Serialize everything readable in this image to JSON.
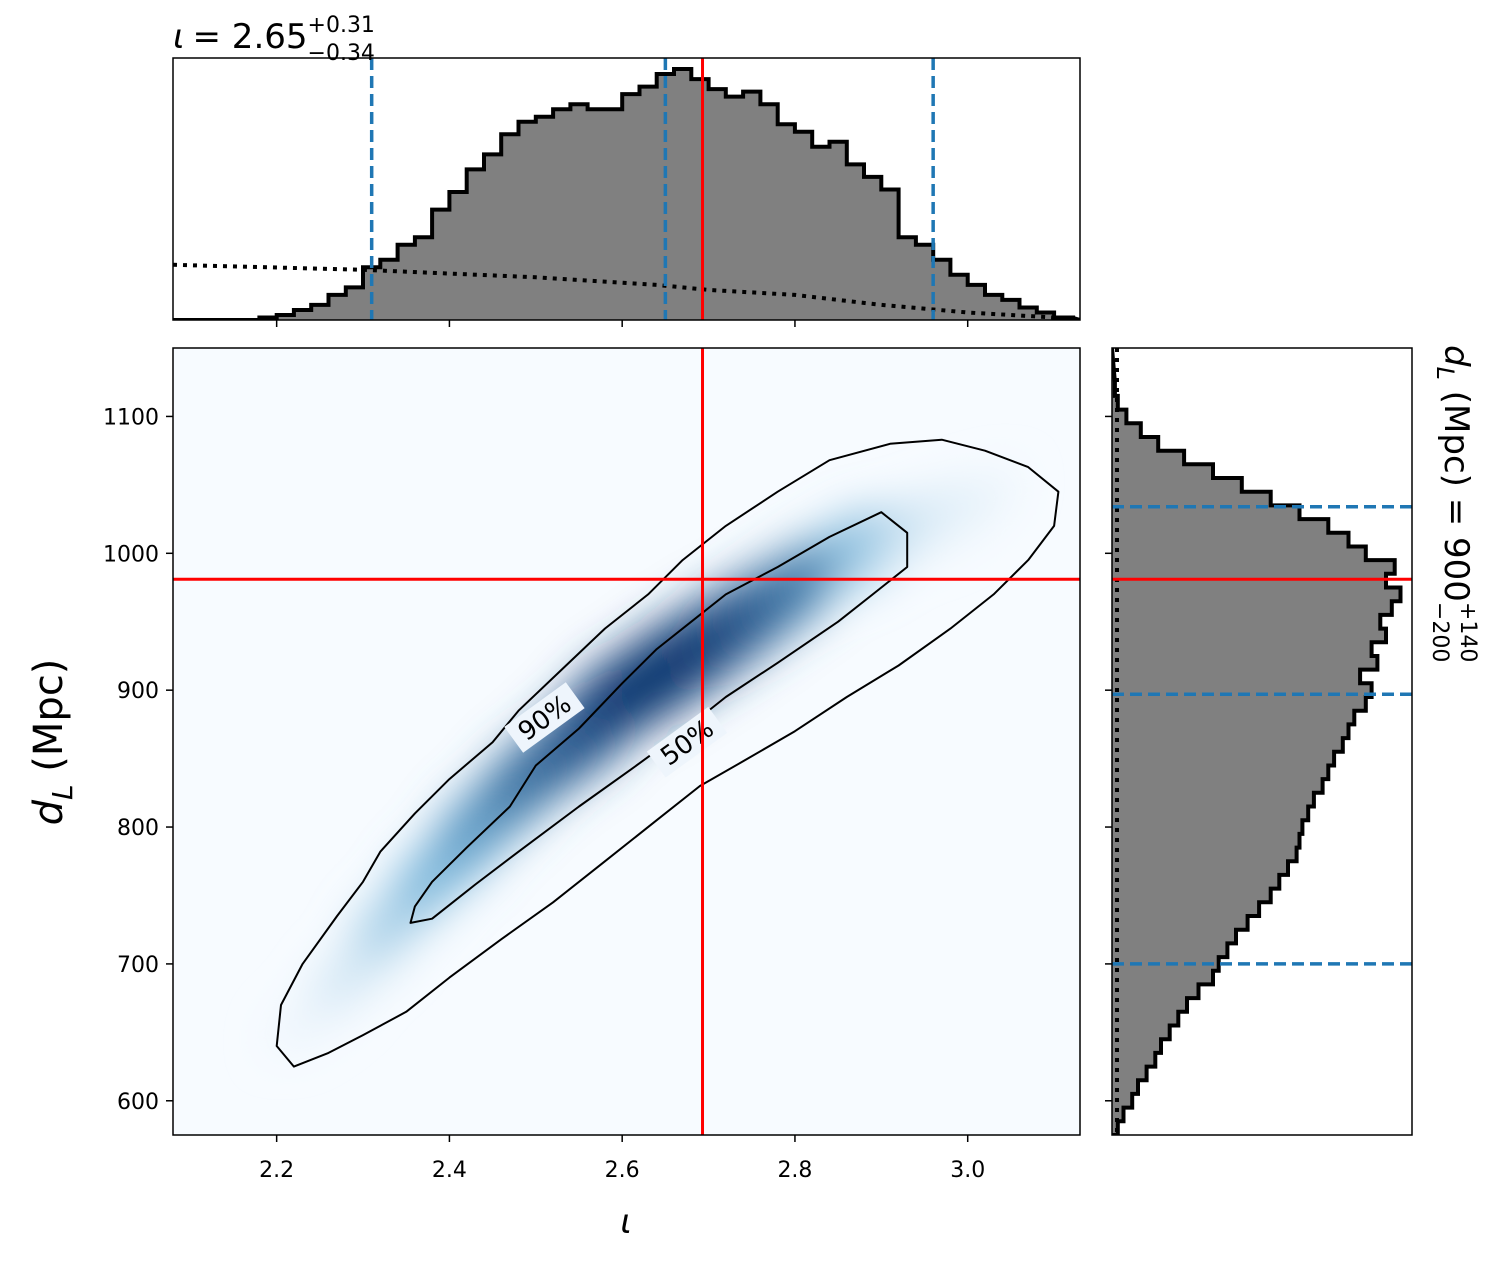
{
  "chart_data": [
    {
      "panel": "top-marginal",
      "type": "histogram",
      "title": {
        "symbol": "ι",
        "eq": "= 2.65",
        "sup": "+0.31",
        "sub": "−0.34"
      },
      "xlim": [
        2.08,
        3.13
      ],
      "bins": [
        [
          2.08,
          0.0
        ],
        [
          2.1,
          0.0
        ],
        [
          2.12,
          0.0
        ],
        [
          2.14,
          0.0
        ],
        [
          2.16,
          0.0
        ],
        [
          2.18,
          0.01
        ],
        [
          2.2,
          0.02
        ],
        [
          2.22,
          0.04
        ],
        [
          2.24,
          0.06
        ],
        [
          2.26,
          0.1
        ],
        [
          2.28,
          0.13
        ],
        [
          2.3,
          0.21
        ],
        [
          2.32,
          0.24
        ],
        [
          2.34,
          0.3
        ],
        [
          2.36,
          0.33
        ],
        [
          2.38,
          0.44
        ],
        [
          2.4,
          0.51
        ],
        [
          2.42,
          0.6
        ],
        [
          2.44,
          0.66
        ],
        [
          2.46,
          0.74
        ],
        [
          2.48,
          0.79
        ],
        [
          2.5,
          0.81
        ],
        [
          2.52,
          0.84
        ],
        [
          2.54,
          0.86
        ],
        [
          2.56,
          0.84
        ],
        [
          2.58,
          0.84
        ],
        [
          2.6,
          0.9
        ],
        [
          2.62,
          0.93
        ],
        [
          2.64,
          0.98
        ],
        [
          2.66,
          1.0
        ],
        [
          2.68,
          0.96
        ],
        [
          2.7,
          0.92
        ],
        [
          2.72,
          0.89
        ],
        [
          2.74,
          0.91
        ],
        [
          2.76,
          0.86
        ],
        [
          2.78,
          0.78
        ],
        [
          2.8,
          0.75
        ],
        [
          2.82,
          0.69
        ],
        [
          2.84,
          0.71
        ],
        [
          2.86,
          0.62
        ],
        [
          2.88,
          0.57
        ],
        [
          2.9,
          0.52
        ],
        [
          2.92,
          0.33
        ],
        [
          2.94,
          0.3
        ],
        [
          2.96,
          0.24
        ],
        [
          2.98,
          0.18
        ],
        [
          3.0,
          0.14
        ],
        [
          3.02,
          0.1
        ],
        [
          3.04,
          0.08
        ],
        [
          3.06,
          0.05
        ],
        [
          3.08,
          0.03
        ],
        [
          3.1,
          0.01
        ]
      ],
      "prior_dotted": [
        [
          2.08,
          0.22
        ],
        [
          2.3,
          0.2
        ],
        [
          2.5,
          0.17
        ],
        [
          2.64,
          0.14
        ],
        [
          2.7,
          0.12
        ],
        [
          2.8,
          0.1
        ],
        [
          2.9,
          0.06
        ],
        [
          3.0,
          0.03
        ],
        [
          3.1,
          0.01
        ],
        [
          3.13,
          0.01
        ]
      ],
      "quantile_lines": [
        2.31,
        2.65,
        2.96
      ],
      "true_value": 2.693,
      "ymax": 1.02
    },
    {
      "panel": "joint-density",
      "type": "heatmap",
      "xlabel": "ι",
      "ylabel": "d",
      "ylabel_sub": "L",
      "ylabel_unit": " (Mpc)",
      "xlim": [
        2.08,
        3.13
      ],
      "ylim": [
        575,
        1150
      ],
      "xticks": [
        "2.2",
        "2.4",
        "2.6",
        "2.8",
        "3.0"
      ],
      "xtick_values": [
        2.2,
        2.4,
        2.6,
        2.8,
        3.0
      ],
      "yticks": [
        "600",
        "700",
        "800",
        "900",
        "1000",
        "1100"
      ],
      "ytick_values": [
        600,
        700,
        800,
        900,
        1000,
        1100
      ],
      "contour_labels": [
        "90%",
        "50%"
      ],
      "true_point": [
        2.693,
        981
      ],
      "contour_90": [
        [
          2.22,
          625
        ],
        [
          2.2,
          640
        ],
        [
          2.205,
          670
        ],
        [
          2.23,
          700
        ],
        [
          2.27,
          735
        ],
        [
          2.3,
          760
        ],
        [
          2.32,
          782
        ],
        [
          2.36,
          810
        ],
        [
          2.4,
          835
        ],
        [
          2.45,
          862
        ],
        [
          2.48,
          885
        ],
        [
          2.53,
          915
        ],
        [
          2.58,
          945
        ],
        [
          2.63,
          970
        ],
        [
          2.67,
          995
        ],
        [
          2.72,
          1020
        ],
        [
          2.78,
          1045
        ],
        [
          2.84,
          1068
        ],
        [
          2.91,
          1080
        ],
        [
          2.97,
          1083
        ],
        [
          3.02,
          1075
        ],
        [
          3.07,
          1063
        ],
        [
          3.105,
          1045
        ],
        [
          3.1,
          1020
        ],
        [
          3.07,
          995
        ],
        [
          3.03,
          970
        ],
        [
          2.98,
          945
        ],
        [
          2.92,
          918
        ],
        [
          2.86,
          895
        ],
        [
          2.8,
          870
        ],
        [
          2.74,
          848
        ],
        [
          2.69,
          830
        ],
        [
          2.64,
          805
        ],
        [
          2.58,
          775
        ],
        [
          2.52,
          745
        ],
        [
          2.46,
          718
        ],
        [
          2.4,
          690
        ],
        [
          2.35,
          665
        ],
        [
          2.3,
          648
        ],
        [
          2.26,
          635
        ],
        [
          2.22,
          625
        ]
      ],
      "contour_50": [
        [
          2.355,
          730
        ],
        [
          2.36,
          742
        ],
        [
          2.38,
          760
        ],
        [
          2.42,
          785
        ],
        [
          2.47,
          815
        ],
        [
          2.5,
          845
        ],
        [
          2.55,
          872
        ],
        [
          2.6,
          905
        ],
        [
          2.64,
          930
        ],
        [
          2.68,
          950
        ],
        [
          2.72,
          970
        ],
        [
          2.78,
          990
        ],
        [
          2.84,
          1012
        ],
        [
          2.9,
          1030
        ],
        [
          2.93,
          1015
        ],
        [
          2.93,
          990
        ],
        [
          2.89,
          970
        ],
        [
          2.85,
          950
        ],
        [
          2.78,
          920
        ],
        [
          2.72,
          895
        ],
        [
          2.66,
          865
        ],
        [
          2.61,
          842
        ],
        [
          2.55,
          815
        ],
        [
          2.48,
          782
        ],
        [
          2.43,
          758
        ],
        [
          2.38,
          733
        ],
        [
          2.355,
          730
        ]
      ],
      "density_ridge": [
        [
          2.25,
          665,
          0.05
        ],
        [
          2.3,
          700,
          0.15
        ],
        [
          2.35,
          740,
          0.3
        ],
        [
          2.4,
          775,
          0.45
        ],
        [
          2.45,
          810,
          0.58
        ],
        [
          2.5,
          840,
          0.68
        ],
        [
          2.55,
          865,
          0.78
        ],
        [
          2.6,
          895,
          0.88
        ],
        [
          2.65,
          915,
          0.95
        ],
        [
          2.7,
          935,
          0.9
        ],
        [
          2.75,
          955,
          0.8
        ],
        [
          2.8,
          975,
          0.68
        ],
        [
          2.85,
          995,
          0.5
        ],
        [
          2.9,
          1005,
          0.32
        ],
        [
          2.95,
          1020,
          0.15
        ],
        [
          3.0,
          1030,
          0.06
        ]
      ]
    },
    {
      "panel": "right-marginal",
      "type": "histogram",
      "title": {
        "symbol": "d",
        "sub_symbol": "L",
        "eq": " (Mpc) = 900",
        "sup": "+140",
        "sub": "−200"
      },
      "ylim": [
        575,
        1150
      ],
      "bins": [
        [
          575,
          0.02
        ],
        [
          585,
          0.04
        ],
        [
          595,
          0.07
        ],
        [
          605,
          0.09
        ],
        [
          615,
          0.12
        ],
        [
          625,
          0.15
        ],
        [
          635,
          0.17
        ],
        [
          645,
          0.2
        ],
        [
          655,
          0.23
        ],
        [
          665,
          0.26
        ],
        [
          675,
          0.3
        ],
        [
          685,
          0.35
        ],
        [
          695,
          0.37
        ],
        [
          705,
          0.4
        ],
        [
          715,
          0.43
        ],
        [
          725,
          0.47
        ],
        [
          735,
          0.51
        ],
        [
          745,
          0.55
        ],
        [
          755,
          0.58
        ],
        [
          765,
          0.61
        ],
        [
          775,
          0.64
        ],
        [
          785,
          0.65
        ],
        [
          795,
          0.66
        ],
        [
          805,
          0.68
        ],
        [
          815,
          0.7
        ],
        [
          825,
          0.73
        ],
        [
          835,
          0.75
        ],
        [
          845,
          0.77
        ],
        [
          855,
          0.8
        ],
        [
          865,
          0.82
        ],
        [
          875,
          0.84
        ],
        [
          885,
          0.88
        ],
        [
          895,
          0.9
        ],
        [
          905,
          0.86
        ],
        [
          915,
          0.92
        ],
        [
          925,
          0.9
        ],
        [
          935,
          0.95
        ],
        [
          945,
          0.93
        ],
        [
          955,
          0.97
        ],
        [
          965,
          1.0
        ],
        [
          975,
          0.95
        ],
        [
          985,
          0.98
        ],
        [
          995,
          0.88
        ],
        [
          1005,
          0.82
        ],
        [
          1015,
          0.75
        ],
        [
          1025,
          0.65
        ],
        [
          1035,
          0.55
        ],
        [
          1045,
          0.45
        ],
        [
          1055,
          0.35
        ],
        [
          1065,
          0.25
        ],
        [
          1075,
          0.16
        ],
        [
          1085,
          0.1
        ],
        [
          1095,
          0.05
        ],
        [
          1105,
          0.02
        ],
        [
          1115,
          0.01
        ]
      ],
      "quantile_lines": [
        700,
        897,
        1034
      ],
      "true_value": 981,
      "xmax": 1.04
    }
  ],
  "colors": {
    "hist_fill": "#808080",
    "hist_edge": "#000000",
    "quantile": "#1f77b4",
    "truth": "#ff0000",
    "contour": "#000000",
    "density_light": "#f7fbff",
    "density_dark": "#08306b"
  }
}
